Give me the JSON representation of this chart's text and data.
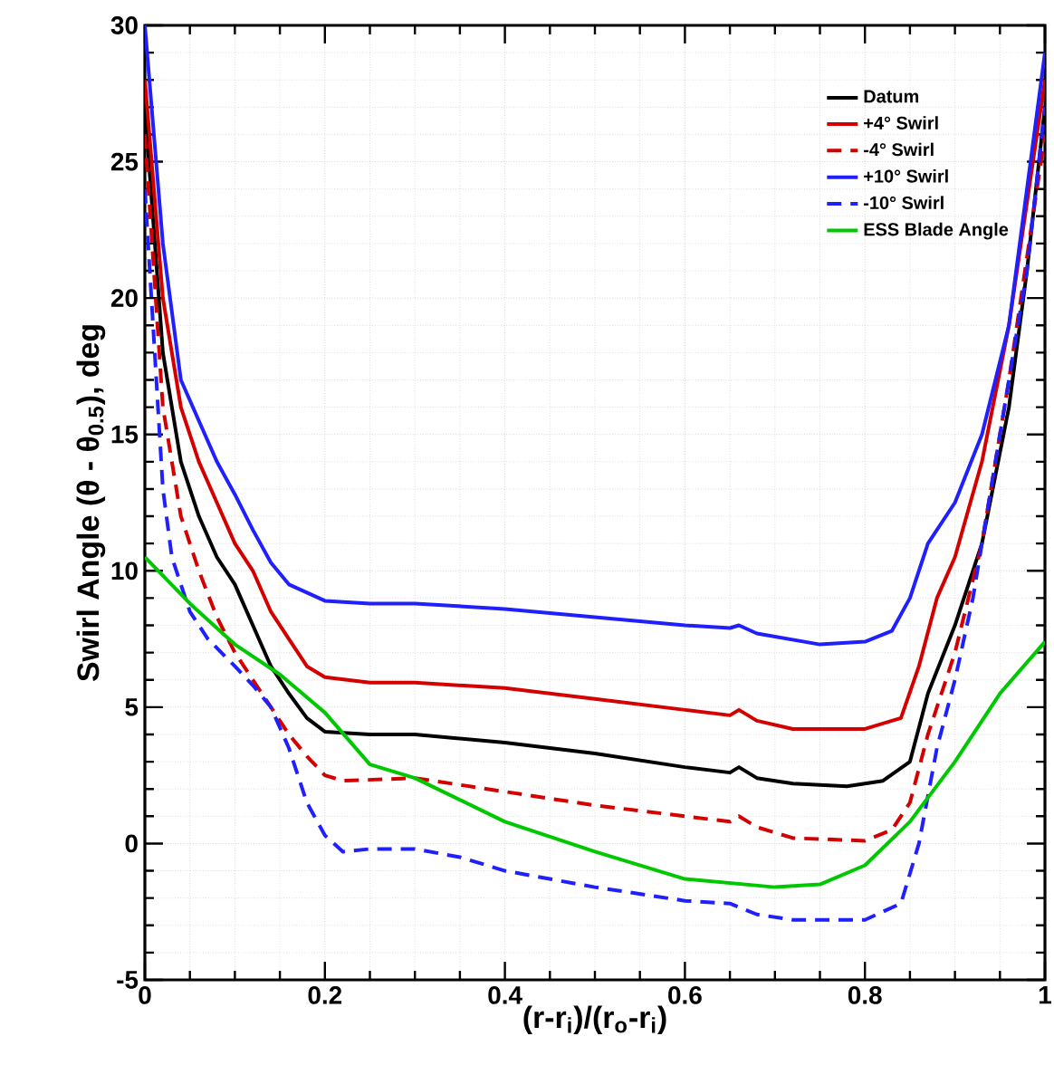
{
  "chart_data": {
    "type": "line",
    "xlabel": "(r-r$_{i}$)/(r$_{o}$-r$_{i}$)",
    "ylabel": "Swirl Angle (θ - θ$_{0.5}$), deg",
    "xlim": [
      0,
      1
    ],
    "ylim": [
      -5,
      30
    ],
    "xticks": [
      0,
      0.2,
      0.4,
      0.6,
      0.8,
      1
    ],
    "yticks": [
      -5,
      0,
      5,
      10,
      15,
      20,
      25,
      30
    ],
    "grid": true,
    "legend": "top right",
    "series": [
      {
        "name": "Datum",
        "color": "#000000",
        "line_style": "solid",
        "x": [
          0,
          0.02,
          0.04,
          0.06,
          0.08,
          0.1,
          0.12,
          0.14,
          0.16,
          0.18,
          0.2,
          0.25,
          0.3,
          0.4,
          0.5,
          0.6,
          0.65,
          0.66,
          0.68,
          0.72,
          0.78,
          0.82,
          0.85,
          0.87,
          0.9,
          0.93,
          0.96,
          0.98,
          1.0
        ],
        "values": [
          27,
          18,
          14,
          12,
          10.5,
          9.5,
          8,
          6.5,
          5.5,
          4.6,
          4.1,
          4.0,
          4.0,
          3.7,
          3.3,
          2.8,
          2.6,
          2.8,
          2.4,
          2.2,
          2.1,
          2.3,
          3.0,
          5.5,
          8.0,
          11,
          16,
          21,
          27
        ]
      },
      {
        "name": "+4° Swirl",
        "color": "#d40000",
        "line_style": "solid",
        "x": [
          0,
          0.02,
          0.04,
          0.06,
          0.08,
          0.1,
          0.12,
          0.14,
          0.16,
          0.18,
          0.2,
          0.25,
          0.3,
          0.4,
          0.5,
          0.6,
          0.65,
          0.66,
          0.68,
          0.72,
          0.8,
          0.84,
          0.86,
          0.88,
          0.9,
          0.93,
          0.96,
          1.0
        ],
        "values": [
          28,
          20,
          16,
          14,
          12.5,
          11,
          10,
          8.5,
          7.5,
          6.5,
          6.1,
          5.9,
          5.9,
          5.7,
          5.3,
          4.9,
          4.7,
          4.9,
          4.5,
          4.2,
          4.2,
          4.6,
          6.5,
          9,
          10.5,
          14,
          19,
          28
        ]
      },
      {
        "name": "-4° Swirl",
        "color": "#d40000",
        "line_style": "dashed",
        "x": [
          0,
          0.02,
          0.04,
          0.06,
          0.08,
          0.1,
          0.12,
          0.14,
          0.16,
          0.18,
          0.2,
          0.22,
          0.3,
          0.4,
          0.5,
          0.6,
          0.65,
          0.66,
          0.68,
          0.72,
          0.8,
          0.83,
          0.85,
          0.87,
          0.9,
          0.93,
          0.96,
          1.0
        ],
        "values": [
          26,
          16,
          12,
          10,
          8.3,
          7,
          6,
          5,
          4,
          3.2,
          2.5,
          2.3,
          2.4,
          1.9,
          1.4,
          1.0,
          0.8,
          1.0,
          0.6,
          0.2,
          0.1,
          0.5,
          1.5,
          4,
          7,
          11,
          17,
          26
        ]
      },
      {
        "name": "+10° Swirl",
        "color": "#2020ff",
        "line_style": "solid",
        "x": [
          0,
          0.02,
          0.04,
          0.06,
          0.08,
          0.1,
          0.12,
          0.14,
          0.16,
          0.2,
          0.25,
          0.3,
          0.4,
          0.5,
          0.6,
          0.65,
          0.66,
          0.68,
          0.75,
          0.8,
          0.83,
          0.85,
          0.87,
          0.9,
          0.93,
          0.96,
          1.0
        ],
        "values": [
          30,
          22,
          17,
          15.5,
          14,
          12.8,
          11.5,
          10.3,
          9.5,
          8.9,
          8.8,
          8.8,
          8.6,
          8.3,
          8.0,
          7.9,
          8.0,
          7.7,
          7.3,
          7.4,
          7.8,
          9,
          11,
          12.5,
          15,
          19,
          29
        ]
      },
      {
        "name": "-10° Swirl",
        "color": "#2020ff",
        "line_style": "dashed",
        "x": [
          0,
          0.02,
          0.03,
          0.05,
          0.07,
          0.1,
          0.12,
          0.14,
          0.16,
          0.18,
          0.2,
          0.22,
          0.25,
          0.3,
          0.35,
          0.4,
          0.5,
          0.6,
          0.65,
          0.68,
          0.72,
          0.8,
          0.84,
          0.86,
          0.88,
          0.9,
          0.92,
          0.95,
          0.98,
          1.0
        ],
        "values": [
          24,
          13,
          10.5,
          8.5,
          7.5,
          6.5,
          5.8,
          5,
          3.5,
          1.5,
          0.3,
          -0.3,
          -0.2,
          -0.2,
          -0.5,
          -1.0,
          -1.6,
          -2.1,
          -2.2,
          -2.6,
          -2.8,
          -2.8,
          -2.2,
          0,
          3.5,
          6,
          9,
          15,
          21,
          27
        ]
      },
      {
        "name": "ESS Blade Angle",
        "color": "#00c800",
        "line_style": "solid",
        "x": [
          0,
          0.05,
          0.1,
          0.15,
          0.2,
          0.25,
          0.3,
          0.4,
          0.5,
          0.6,
          0.7,
          0.75,
          0.8,
          0.85,
          0.9,
          0.95,
          1.0
        ],
        "values": [
          10.5,
          8.8,
          7.3,
          6.2,
          4.8,
          2.9,
          2.4,
          0.8,
          -0.3,
          -1.3,
          -1.6,
          -1.5,
          -0.8,
          0.8,
          3,
          5.5,
          7.4
        ]
      }
    ]
  }
}
